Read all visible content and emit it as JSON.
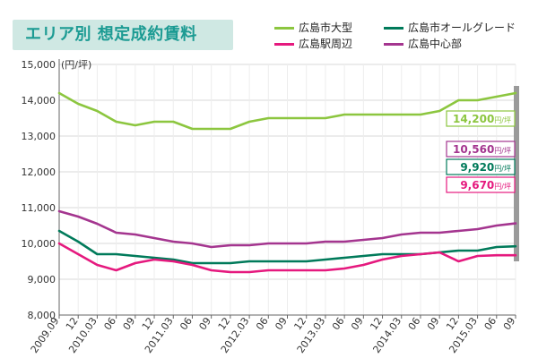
{
  "title": "エリア別 想定成約賃料",
  "chart_data": {
    "type": "line",
    "ylabel": "(円/坪)",
    "ylim": [
      8000,
      15000
    ],
    "yticks": [
      8000,
      9000,
      10000,
      11000,
      12000,
      13000,
      14000,
      15000
    ],
    "ytick_labels": [
      "8,000",
      "9,000",
      "10,000",
      "11,000",
      "12,000",
      "13,000",
      "14,000",
      "15,000"
    ],
    "x_labels": [
      "2009.09",
      "12",
      "2010.03",
      "06",
      "09",
      "12",
      "2011.03",
      "06",
      "09",
      "12",
      "2012.03",
      "06",
      "09",
      "12",
      "2013.03",
      "06",
      "09",
      "12",
      "2014.03",
      "06",
      "09",
      "12",
      "2015.03",
      "06",
      "09"
    ],
    "grid": true,
    "legend_position": "top-right",
    "series": [
      {
        "name": "広島市大型",
        "color": "#8cc63f",
        "values": [
          14200,
          13900,
          13700,
          13400,
          13300,
          13400,
          13400,
          13200,
          13200,
          13200,
          13400,
          13500,
          13500,
          13500,
          13500,
          13600,
          13600,
          13600,
          13600,
          13600,
          13700,
          14000,
          14000,
          14100,
          14200
        ],
        "end_label": "14,200",
        "end_unit": "円/坪"
      },
      {
        "name": "広島市オールグレード",
        "color": "#007a5a",
        "values": [
          10350,
          10050,
          9700,
          9700,
          9650,
          9600,
          9550,
          9450,
          9450,
          9450,
          9500,
          9500,
          9500,
          9500,
          9550,
          9600,
          9650,
          9700,
          9700,
          9700,
          9750,
          9800,
          9800,
          9900,
          9920
        ],
        "end_label": "9,920",
        "end_unit": "円/坪"
      },
      {
        "name": "広島駅周辺",
        "color": "#e5197e",
        "values": [
          10000,
          9700,
          9400,
          9250,
          9450,
          9550,
          9500,
          9400,
          9250,
          9200,
          9200,
          9250,
          9250,
          9250,
          9250,
          9300,
          9400,
          9550,
          9650,
          9700,
          9750,
          9500,
          9650,
          9670,
          9670
        ],
        "end_label": "9,670",
        "end_unit": "円/坪"
      },
      {
        "name": "広島中心部",
        "color": "#a4358f",
        "values": [
          10900,
          10750,
          10550,
          10300,
          10250,
          10150,
          10050,
          10000,
          9900,
          9950,
          9950,
          10000,
          10000,
          10000,
          10050,
          10050,
          10100,
          10150,
          10250,
          10300,
          10300,
          10350,
          10400,
          10500,
          10560
        ],
        "end_label": "10,560",
        "end_unit": "円/坪"
      }
    ]
  }
}
